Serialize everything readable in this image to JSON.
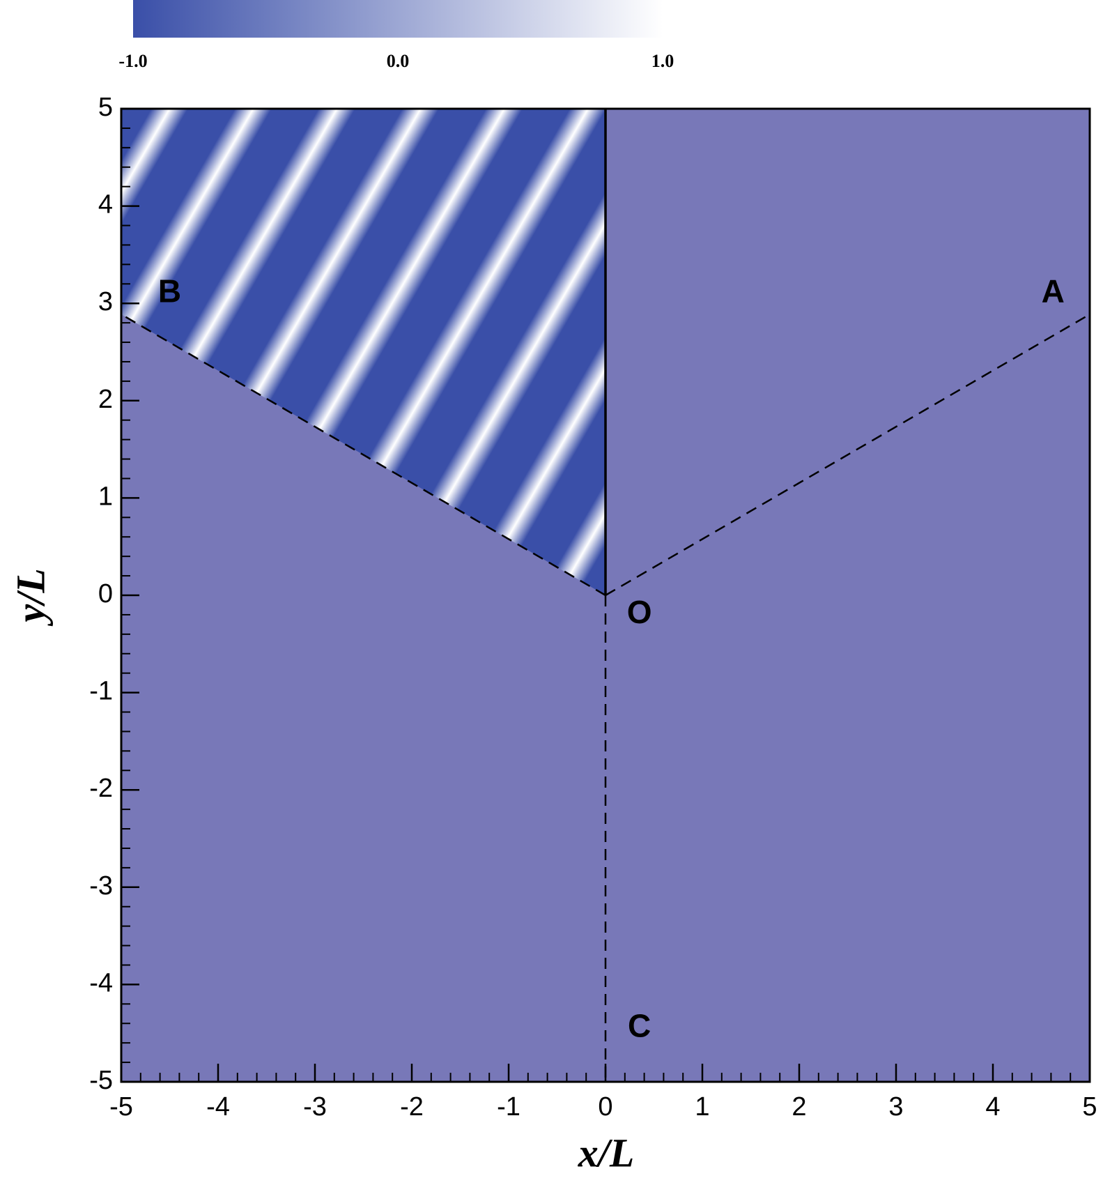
{
  "chart_data": {
    "type": "contour",
    "xlabel": "x/L",
    "ylabel": "y/L",
    "xlim": [
      -5,
      5
    ],
    "ylim": [
      -5,
      5
    ],
    "xticks": [
      -5,
      -4,
      -3,
      -2,
      -1,
      0,
      1,
      2,
      3,
      4,
      5
    ],
    "yticks": [
      -5,
      -4,
      -3,
      -2,
      -1,
      0,
      1,
      2,
      3,
      4,
      5
    ],
    "colorbar": {
      "lim": [
        -1,
        1
      ],
      "colors": [
        "#3a4fa8",
        "#ffffff"
      ],
      "ticks": [
        {
          "value": -1,
          "label": "-1.0"
        },
        {
          "value": 0,
          "label": "0.0"
        },
        {
          "value": 1,
          "label": "1.0"
        }
      ]
    },
    "field_color": "#7878b8",
    "annotations": [
      "A",
      "B",
      "C",
      "O"
    ]
  }
}
